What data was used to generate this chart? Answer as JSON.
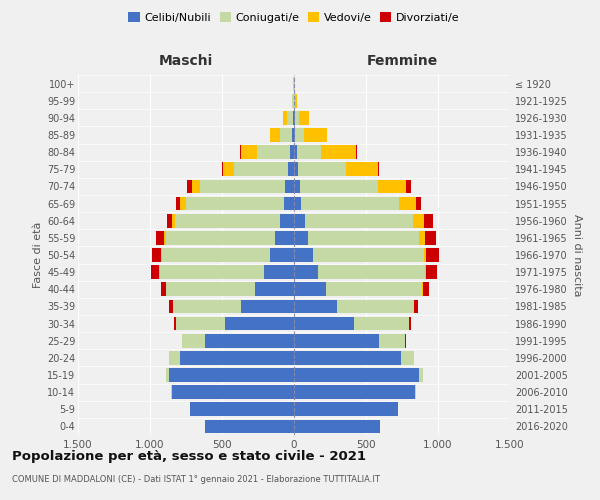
{
  "age_groups": [
    "0-4",
    "5-9",
    "10-14",
    "15-19",
    "20-24",
    "25-29",
    "30-34",
    "35-39",
    "40-44",
    "45-49",
    "50-54",
    "55-59",
    "60-64",
    "65-69",
    "70-74",
    "75-79",
    "80-84",
    "85-89",
    "90-94",
    "95-99",
    "100+"
  ],
  "birth_years": [
    "2016-2020",
    "2011-2015",
    "2006-2010",
    "2001-2005",
    "1996-2000",
    "1991-1995",
    "1986-1990",
    "1981-1985",
    "1976-1980",
    "1971-1975",
    "1966-1970",
    "1961-1965",
    "1956-1960",
    "1951-1955",
    "1946-1950",
    "1941-1945",
    "1936-1940",
    "1931-1935",
    "1926-1930",
    "1921-1925",
    "≤ 1920"
  ],
  "male": {
    "celibi": [
      620,
      720,
      850,
      870,
      790,
      620,
      480,
      370,
      270,
      210,
      170,
      130,
      95,
      70,
      60,
      40,
      30,
      15,
      10,
      3,
      2
    ],
    "coniugati": [
      0,
      0,
      5,
      20,
      80,
      155,
      340,
      470,
      620,
      720,
      750,
      760,
      730,
      680,
      590,
      380,
      230,
      80,
      40,
      8,
      2
    ],
    "vedovi": [
      0,
      0,
      0,
      0,
      0,
      0,
      0,
      0,
      0,
      5,
      5,
      10,
      20,
      40,
      60,
      70,
      110,
      70,
      25,
      5,
      0
    ],
    "divorziati": [
      0,
      0,
      0,
      0,
      0,
      5,
      15,
      25,
      35,
      55,
      60,
      55,
      40,
      30,
      30,
      10,
      5,
      0,
      0,
      0,
      0
    ]
  },
  "female": {
    "nubili": [
      600,
      720,
      840,
      870,
      740,
      590,
      420,
      300,
      220,
      170,
      130,
      100,
      75,
      50,
      40,
      30,
      20,
      10,
      8,
      3,
      2
    ],
    "coniugate": [
      0,
      0,
      5,
      25,
      90,
      180,
      380,
      530,
      670,
      740,
      770,
      770,
      750,
      680,
      540,
      330,
      170,
      60,
      25,
      5,
      2
    ],
    "vedove": [
      0,
      0,
      0,
      0,
      0,
      0,
      0,
      0,
      5,
      10,
      20,
      40,
      80,
      120,
      200,
      220,
      240,
      160,
      70,
      15,
      1
    ],
    "divorziate": [
      0,
      0,
      0,
      0,
      0,
      5,
      15,
      30,
      45,
      75,
      90,
      75,
      60,
      35,
      30,
      10,
      5,
      0,
      0,
      0,
      0
    ]
  },
  "colors": {
    "celibi": "#4472c4",
    "coniugati": "#c5d9a4",
    "vedovi": "#ffc000",
    "divorziati": "#cc0000"
  },
  "title": "Popolazione per età, sesso e stato civile - 2021",
  "subtitle": "COMUNE DI MADDALONI (CE) - Dati ISTAT 1° gennaio 2021 - Elaborazione TUTTITALIA.IT",
  "xlabel_left": "Maschi",
  "xlabel_right": "Femmine",
  "ylabel_left": "Fasce di età",
  "ylabel_right": "Anni di nascita",
  "xlim": 1500,
  "background_color": "#f0f0f0",
  "legend_labels": [
    "Celibi/Nubili",
    "Coniugati/e",
    "Vedovi/e",
    "Divorziati/e"
  ]
}
